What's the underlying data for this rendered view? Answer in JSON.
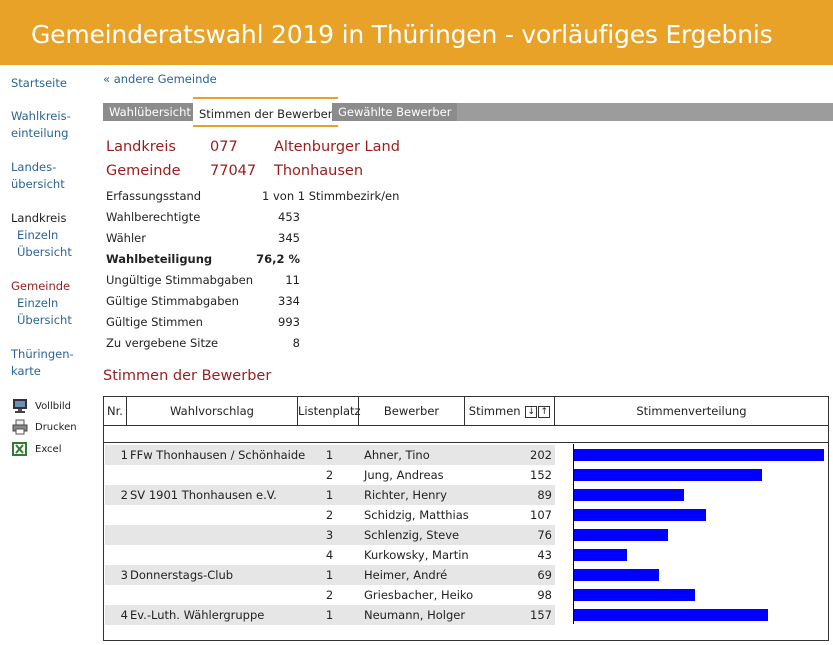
{
  "header": {
    "title": "Gemeinderatswahl 2019 in Thüringen - vorläufiges Ergebnis"
  },
  "sidebar": {
    "startseite": "Startseite",
    "wahlkreis": [
      "Wahlkreis-",
      "einteilung"
    ],
    "landes": [
      "Landes-",
      "übersicht"
    ],
    "landkreis": {
      "label": "Landkreis",
      "sub1": "Einzeln",
      "sub2": "Übersicht"
    },
    "gemeinde": {
      "label": "Gemeinde",
      "sub1": "Einzeln",
      "sub2": "Übersicht"
    },
    "karte": [
      "Thüringen-",
      "karte"
    ],
    "tools": {
      "vollbild": "Vollbild",
      "drucken": "Drucken",
      "excel": "Excel"
    }
  },
  "back_link": "« andere Gemeinde",
  "tabs": [
    "Wahlübersicht",
    "Stimmen der Bewerber",
    "Gewählte Bewerber"
  ],
  "landkreis": {
    "label": "Landkreis",
    "code": "077",
    "name": "Altenburger Land"
  },
  "gemeinde": {
    "label": "Gemeinde",
    "code": "77047",
    "name": "Thonhausen"
  },
  "stats": [
    {
      "label": "Erfassungsstand",
      "value": "1 von 1 Stimmbezirk/en"
    },
    {
      "label": "Wahlberechtigte",
      "value": "453"
    },
    {
      "label": "Wähler",
      "value": "345"
    },
    {
      "label": "Wahlbeteiligung",
      "value": "76,2 %"
    },
    {
      "label": "Ungültige Stimmabgaben",
      "value": "11"
    },
    {
      "label": "Gültige Stimmabgaben",
      "value": "334"
    },
    {
      "label": "Gültige Stimmen",
      "value": "993"
    },
    {
      "label": "Zu vergebene Sitze",
      "value": "8"
    }
  ],
  "section_title": "Stimmen der Bewerber",
  "table": {
    "headers": [
      "Nr.",
      "Wahlvorschlag",
      "Listenplatz",
      "Bewerber",
      "Stimmen",
      "Stimmenverteilung"
    ],
    "rows": [
      {
        "nr": "1",
        "vorschlag": "FFw Thonhausen / Schönhaide",
        "platz": "1",
        "bewerber": "Ahner, Tino",
        "stimmen": 202
      },
      {
        "nr": "",
        "vorschlag": "",
        "platz": "2",
        "bewerber": "Jung, Andreas",
        "stimmen": 152
      },
      {
        "nr": "2",
        "vorschlag": "SV 1901 Thonhausen e.V.",
        "platz": "1",
        "bewerber": "Richter, Henry",
        "stimmen": 89
      },
      {
        "nr": "",
        "vorschlag": "",
        "platz": "2",
        "bewerber": "Schidzig, Matthias",
        "stimmen": 107
      },
      {
        "nr": "",
        "vorschlag": "",
        "platz": "3",
        "bewerber": "Schlenzig, Steve",
        "stimmen": 76
      },
      {
        "nr": "",
        "vorschlag": "",
        "platz": "4",
        "bewerber": "Kurkowsky, Martin",
        "stimmen": 43
      },
      {
        "nr": "3",
        "vorschlag": "Donnerstags-Club",
        "platz": "1",
        "bewerber": "Heimer, André",
        "stimmen": 69
      },
      {
        "nr": "",
        "vorschlag": "",
        "platz": "2",
        "bewerber": "Griesbacher, Heiko",
        "stimmen": 98
      },
      {
        "nr": "4",
        "vorschlag": "Ev.-Luth. Wählergruppe",
        "platz": "1",
        "bewerber": "Neumann, Holger",
        "stimmen": 157
      }
    ]
  },
  "colors": {
    "header": "#e8a227",
    "accent_red": "#9b1c1c",
    "link": "#2a6496",
    "bar": "#0000ff"
  },
  "icons": {
    "vollbild": "monitor-icon",
    "drucken": "printer-icon",
    "excel": "excel-icon"
  }
}
